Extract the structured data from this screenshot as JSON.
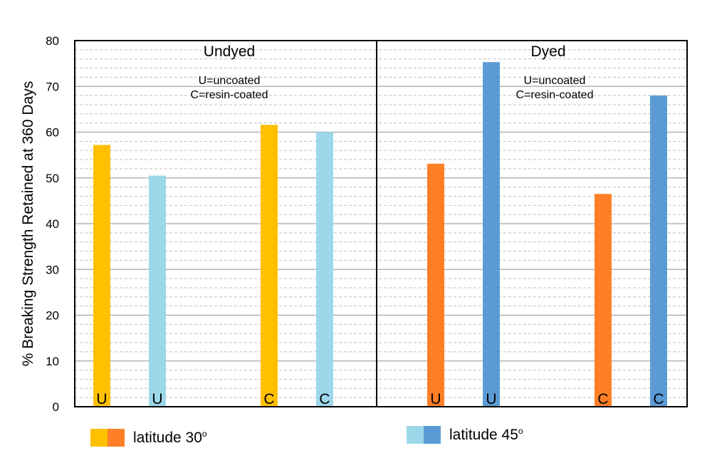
{
  "chart_data": {
    "type": "bar",
    "ylabel": "% Breaking Strength Retained at 360 Days",
    "ylim": [
      0,
      80
    ],
    "yticks": [
      0,
      10,
      20,
      30,
      40,
      50,
      60,
      70,
      80
    ],
    "minor_gridlines": true,
    "panels": [
      {
        "title": "Undyed",
        "note_lines": [
          "U=uncoated",
          "C=resin-coated"
        ],
        "bars": [
          {
            "label": "U",
            "latitude": "30",
            "value": 57.2,
            "color": "#FFC000"
          },
          {
            "label": "U",
            "latitude": "45",
            "value": 50.5,
            "color": "#9DD8EA"
          },
          {
            "label": "C",
            "latitude": "30",
            "value": 61.6,
            "color": "#FFC000"
          },
          {
            "label": "C",
            "latitude": "45",
            "value": 60.0,
            "color": "#9DD8EA"
          }
        ]
      },
      {
        "title": "Dyed",
        "note_lines": [
          "U=uncoated",
          "C=resin-coated"
        ],
        "bars": [
          {
            "label": "U",
            "latitude": "30",
            "value": 53.1,
            "color": "#FF7F27"
          },
          {
            "label": "U",
            "latitude": "45",
            "value": 75.3,
            "color": "#5B9BD5"
          },
          {
            "label": "C",
            "latitude": "30",
            "value": 46.5,
            "color": "#FF7F27"
          },
          {
            "label": "C",
            "latitude": "45",
            "value": 68.0,
            "color": "#5B9BD5"
          }
        ]
      }
    ],
    "legend": [
      {
        "label": "latitude 30",
        "degree": "o",
        "colors": [
          "#FFC000",
          "#FF7F27"
        ]
      },
      {
        "label": "latitude 45",
        "degree": "o",
        "colors": [
          "#9DD8EA",
          "#5B9BD5"
        ]
      }
    ]
  }
}
